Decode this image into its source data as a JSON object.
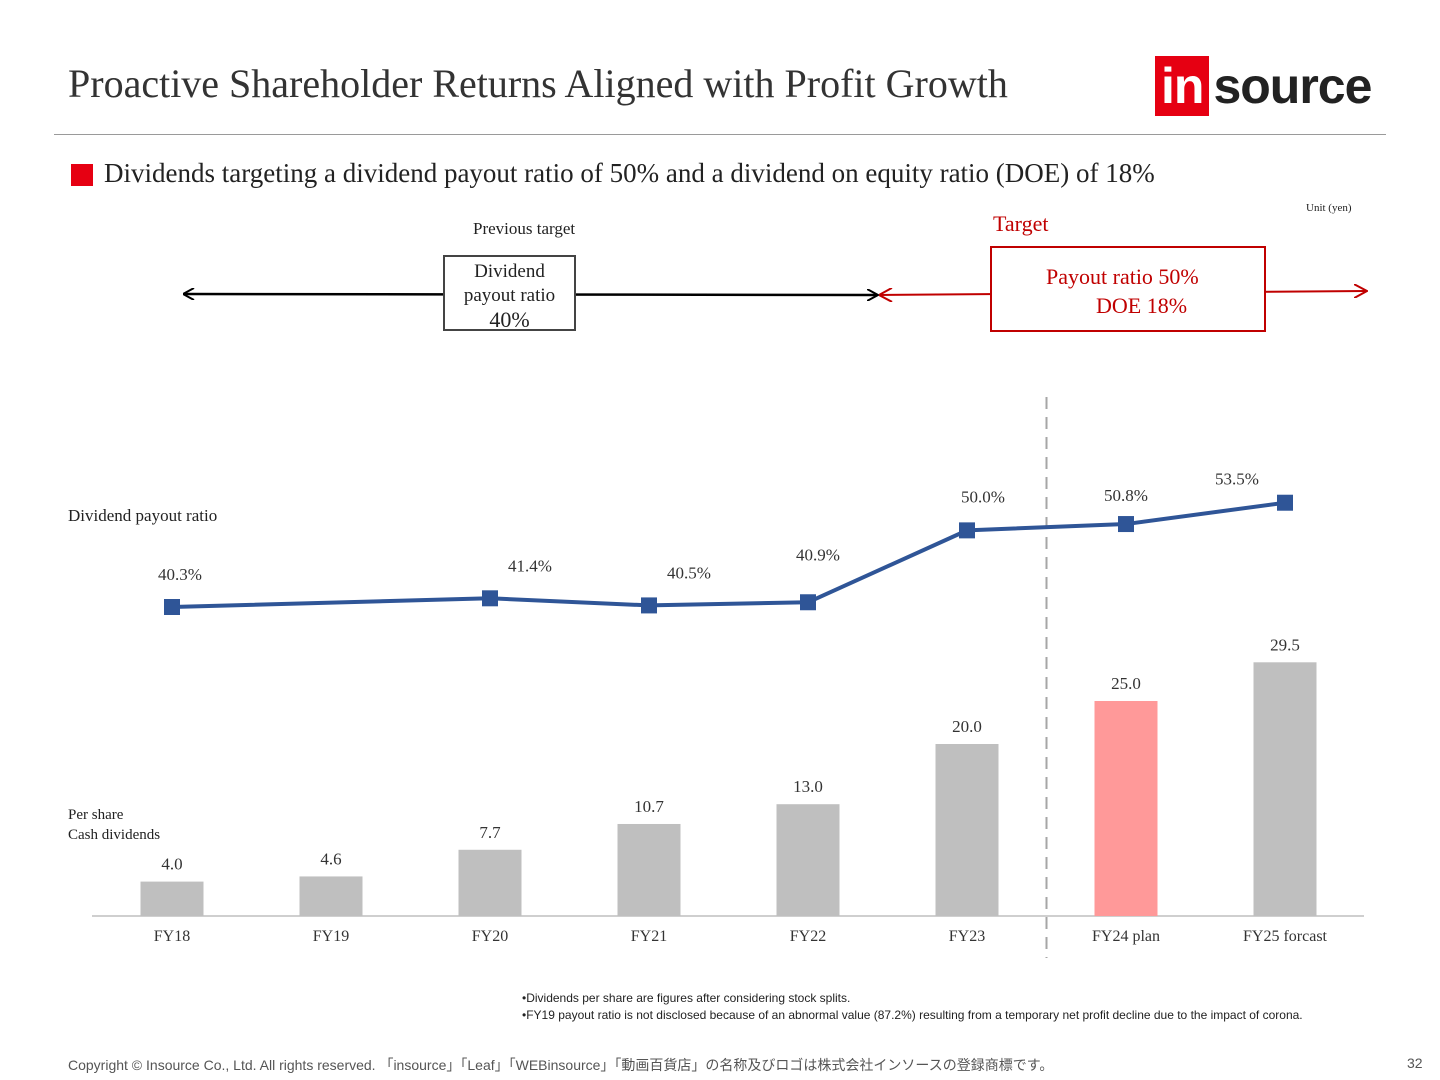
{
  "header": {
    "title": "Proactive Shareholder Returns Aligned with Profit Growth",
    "logo_prefix": "in",
    "logo_suffix": "source"
  },
  "subtitle": "Dividends targeting a dividend payout ratio of 50% and a dividend on equity ratio (DOE) of 18%",
  "unit_label": "Unit (yen)",
  "previous_target": {
    "label": "Previous target",
    "line1": "Dividend",
    "line2": "payout ratio",
    "line3": "40%"
  },
  "target": {
    "label": "Target",
    "line1": "Payout ratio 50%",
    "line2": "DOE 18%"
  },
  "labels": {
    "ratio_axis": "Dividend payout ratio",
    "cash_line1": "Per share",
    "cash_line2": "Cash dividends"
  },
  "colors": {
    "bar": "#bfbfbf",
    "bar_highlight": "#ff9999",
    "line": "#2f5597",
    "target_red": "#c00000",
    "accent_red": "#e60012"
  },
  "chart_data": {
    "type": "bar+line",
    "categories": [
      "FY18",
      "FY19",
      "FY20",
      "FY21",
      "FY22",
      "FY23",
      "FY24 plan",
      "FY25 forcast"
    ],
    "series": [
      {
        "name": "Per share Cash dividends",
        "type": "bar",
        "values": [
          4.0,
          4.6,
          7.7,
          10.7,
          13.0,
          20.0,
          25.0,
          29.5
        ],
        "value_labels": [
          "4.0",
          "4.6",
          "7.7",
          "10.7",
          "13.0",
          "20.0",
          "25.0",
          "29.5"
        ],
        "highlight_index": 6
      },
      {
        "name": "Dividend payout ratio",
        "type": "line",
        "values": [
          40.3,
          null,
          41.4,
          40.5,
          40.9,
          50.0,
          50.8,
          53.5
        ],
        "value_labels": [
          "40.3%",
          "",
          "41.4%",
          "40.5%",
          "40.9%",
          "50.0%",
          "50.8%",
          "53.5%"
        ]
      }
    ],
    "divider_after": "FY23"
  },
  "footnotes": [
    "•Dividends per share are figures after considering stock splits.",
    "•FY19 payout ratio is not disclosed because of an abnormal value (87.2%) resulting from a temporary net profit decline due to the impact of corona."
  ],
  "footer": {
    "copyright": "Copyright © Insource Co., Ltd. All rights reserved. 「insource」「Leaf」「WEBinsource」「動画百貨店」の名称及びロゴは株式会社インソースの登録商標です。",
    "page_number": "32"
  }
}
